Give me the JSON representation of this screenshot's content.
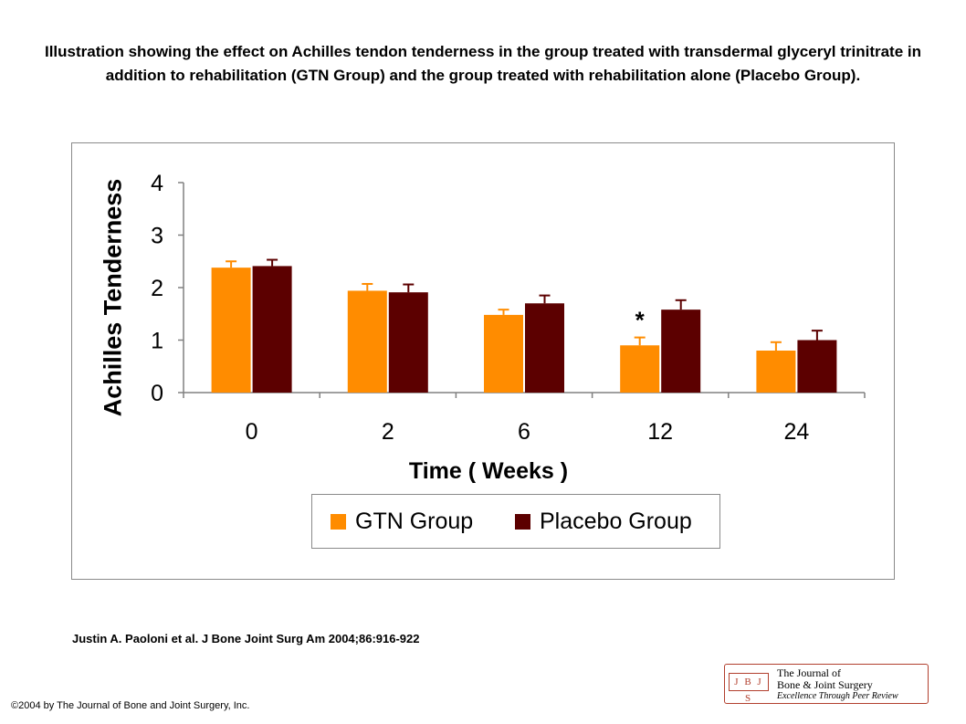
{
  "title": "Illustration showing the effect on Achilles tendon tenderness in the group treated with transdermal glyceryl trinitrate in addition to rehabilitation (GTN Group) and the group treated with rehabilitation alone (Placebo Group).",
  "citation": "Justin A. Paoloni et al. J Bone Joint Surg Am 2004;86:916-922",
  "copyright": "©2004 by The Journal of Bone and Joint Surgery, Inc.",
  "logo": {
    "mark": "J B J S",
    "line1": "The Journal of",
    "line2": "Bone & Joint Surgery",
    "line3": "Excellence Through Peer Review"
  },
  "chart_data": {
    "type": "bar",
    "title": "",
    "xlabel": "Time ( Weeks )",
    "ylabel": "Achilles Tenderness",
    "categories": [
      "0",
      "2",
      "6",
      "12",
      "24"
    ],
    "ylim": [
      0,
      4
    ],
    "yticks": [
      "0",
      "1",
      "2",
      "3",
      "4"
    ],
    "grid": false,
    "legend_position": "bottom",
    "series": [
      {
        "name": "GTN Group",
        "color": "#ff8c00",
        "values": [
          2.38,
          1.94,
          1.48,
          0.9,
          0.8
        ],
        "errors": [
          0.12,
          0.13,
          0.1,
          0.15,
          0.16
        ]
      },
      {
        "name": "Placebo Group",
        "color": "#5c0000",
        "values": [
          2.41,
          1.91,
          1.7,
          1.58,
          1.0
        ],
        "errors": [
          0.12,
          0.15,
          0.15,
          0.18,
          0.18
        ]
      }
    ],
    "annotations": [
      {
        "category": "12",
        "text": "*"
      }
    ]
  }
}
